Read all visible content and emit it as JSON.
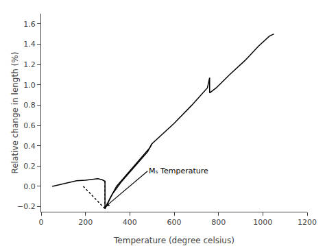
{
  "chart_data": {
    "type": "line",
    "x_label": "Temperature (degree celsius)",
    "y_label": "Relative change in length (%)",
    "xlim": [
      0,
      1200
    ],
    "ylim": [
      -0.25,
      1.7
    ],
    "xticks": [
      0,
      200,
      400,
      600,
      800,
      1000,
      1200
    ],
    "yticks": [
      {
        "value": -0.2,
        "label": "−0.2"
      },
      {
        "value": 0.0,
        "label": "0.0"
      },
      0.2,
      0.4,
      0.6,
      0.8,
      {
        "value": 1.0,
        "label": "1.0"
      },
      1.2,
      1.4,
      1.6
    ],
    "grid": false,
    "series": [
      {
        "color": "black",
        "line_style": "solid",
        "x": [
          50,
          80,
          120,
          160,
          200,
          230,
          255,
          275,
          286,
          288,
          288,
          310,
          340,
          380,
          420,
          460,
          490,
          500,
          540,
          600,
          680,
          750,
          760,
          760,
          790,
          850,
          920,
          980,
          1030,
          1050
        ],
        "values": [
          0.0,
          0.015,
          0.04,
          0.055,
          0.06,
          0.07,
          0.075,
          0.065,
          0.055,
          0.05,
          -0.22,
          -0.12,
          0.0,
          0.1,
          0.2,
          0.3,
          0.38,
          0.42,
          0.5,
          0.62,
          0.8,
          0.97,
          1.07,
          0.92,
          0.97,
          1.1,
          1.24,
          1.38,
          1.48,
          1.5
        ]
      },
      {
        "color": "black",
        "line_style": "solid",
        "x": [
          288,
          320,
          360,
          400,
          440,
          480,
          500
        ],
        "values": [
          -0.22,
          -0.08,
          0.04,
          0.14,
          0.24,
          0.34,
          0.42
        ]
      },
      {
        "color": "black",
        "line_style": "dotted",
        "x": [
          190,
          288
        ],
        "values": [
          0.0,
          -0.22
        ]
      },
      {
        "color": "black",
        "line_style": "dotted",
        "x": [
          288,
          288
        ],
        "values": [
          0.05,
          -0.22
        ]
      }
    ],
    "annotations": [
      {
        "text": "Mₛ Temperature",
        "x": 480,
        "y": 0.15,
        "arrow_x": 290,
        "arrow_y": -0.2,
        "color": "black"
      }
    ]
  }
}
